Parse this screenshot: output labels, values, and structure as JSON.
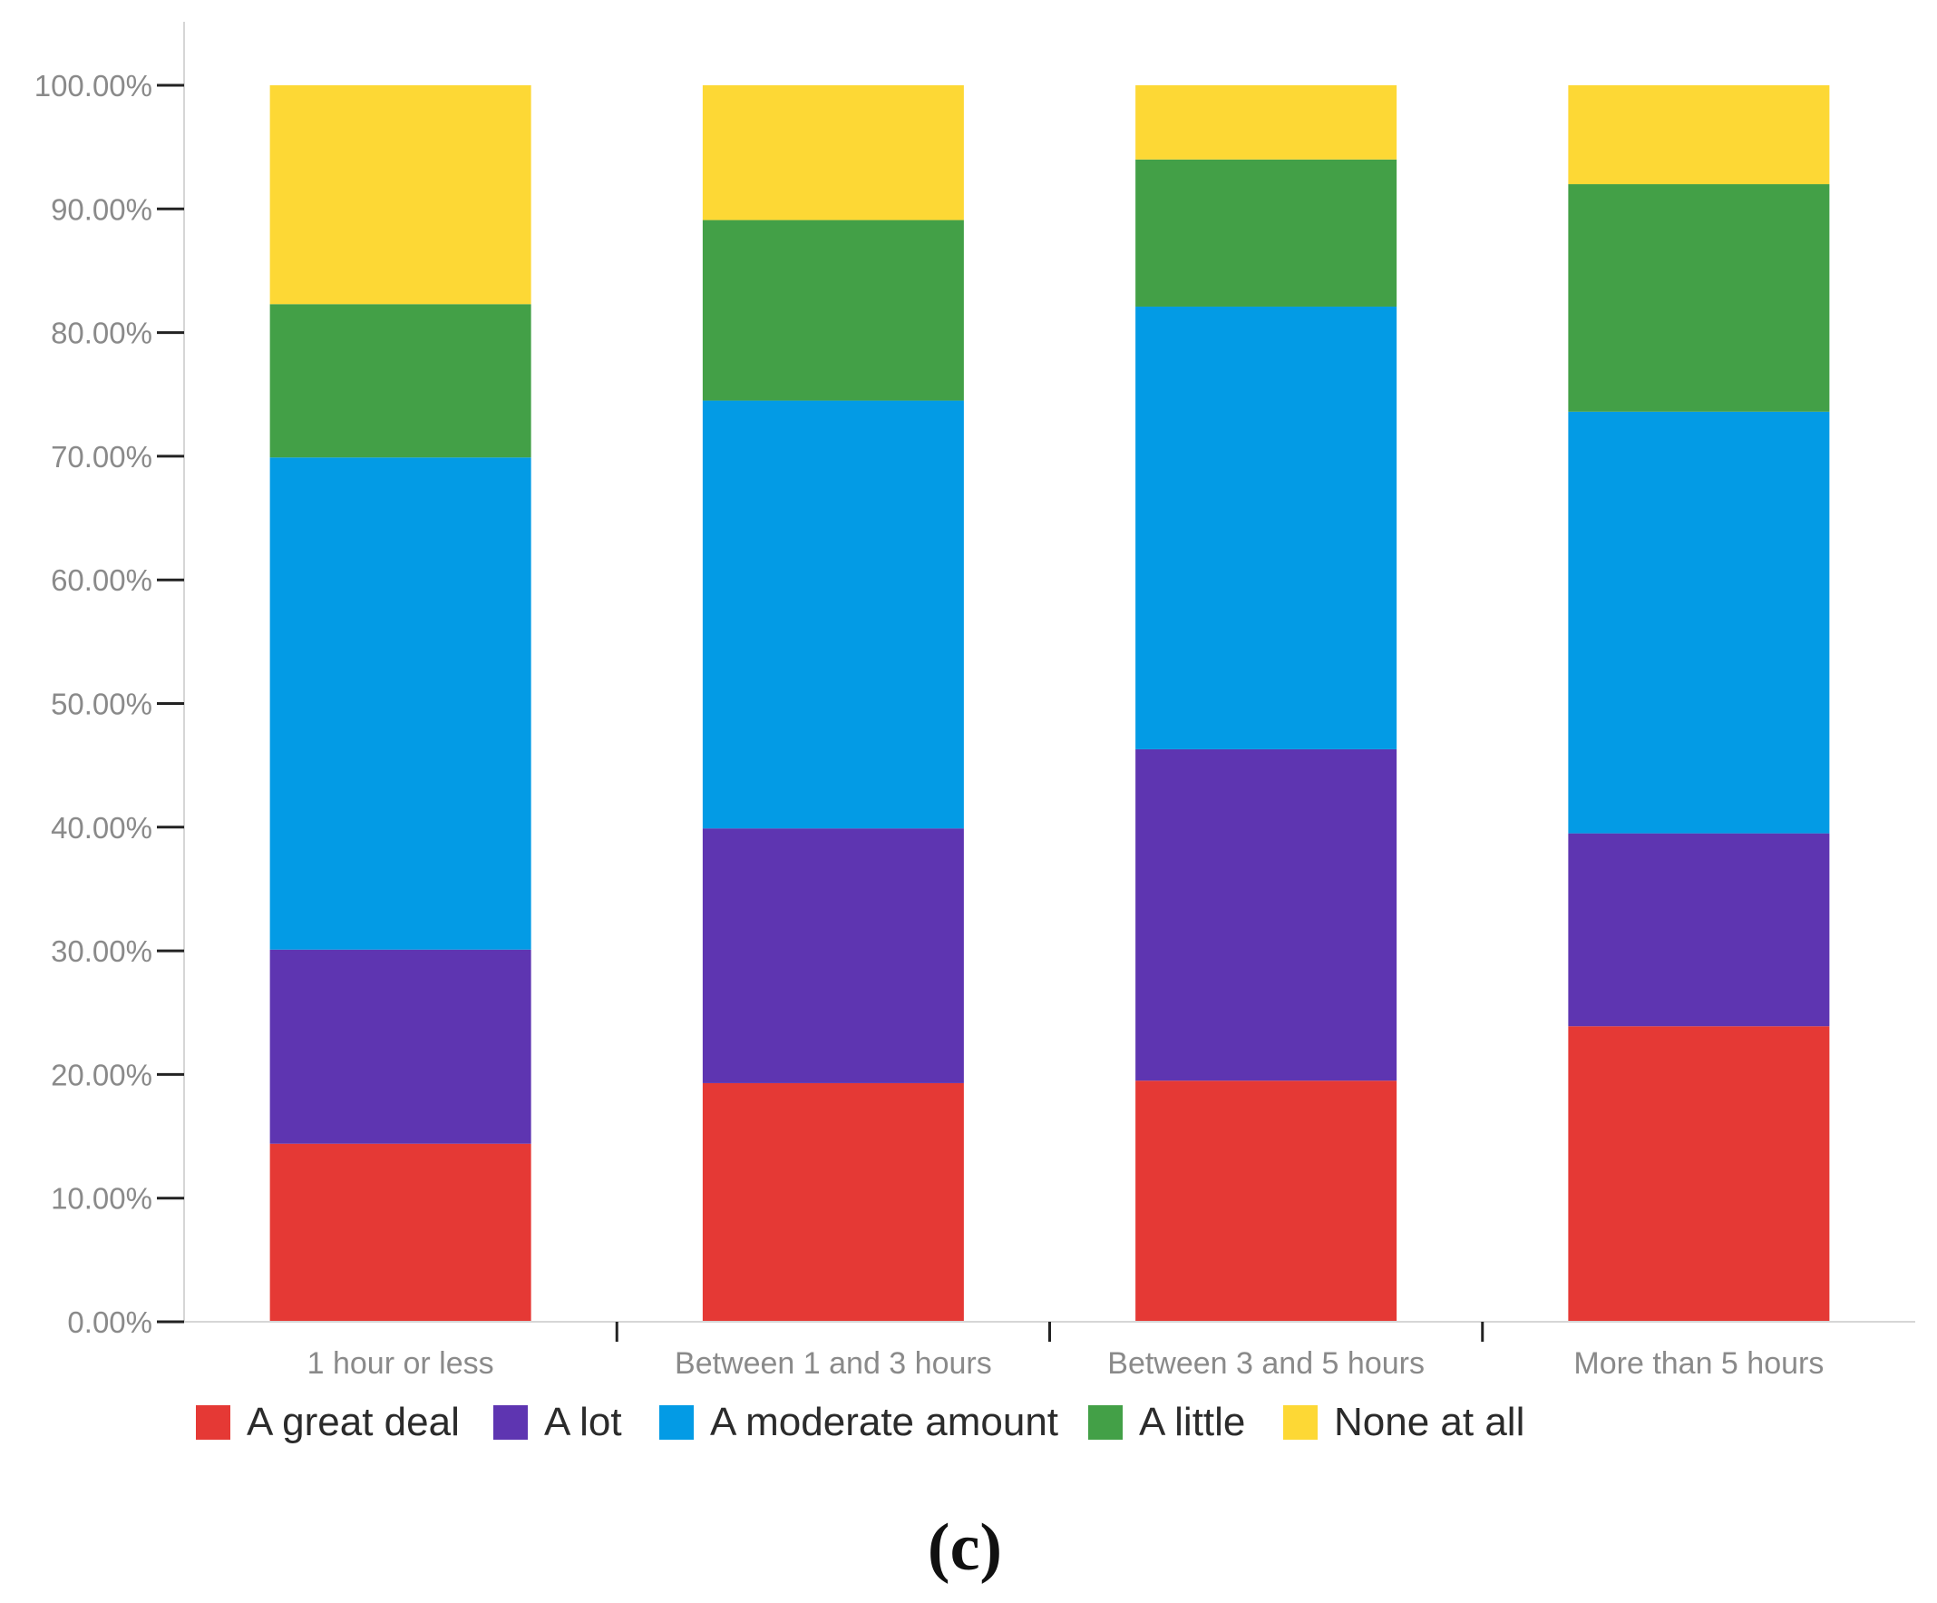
{
  "chart_data": {
    "type": "bar",
    "stacked": true,
    "title": "",
    "xlabel": "",
    "ylabel": "",
    "ylim": [
      0,
      100
    ],
    "y_ticks": [
      0,
      10,
      20,
      30,
      40,
      50,
      60,
      70,
      80,
      90,
      100
    ],
    "y_tick_labels": [
      "0.00%",
      "10.00%",
      "20.00%",
      "30.00%",
      "40.00%",
      "50.00%",
      "60.00%",
      "70.00%",
      "80.00%",
      "90.00%",
      "100.00%"
    ],
    "grid": false,
    "legend_position": "bottom-left",
    "categories": [
      "1 hour or less",
      "Between 1 and 3 hours",
      "Between 3 and 5 hours",
      "More than 5 hours"
    ],
    "series": [
      {
        "name": "A great deal",
        "color": "#e53935",
        "values": [
          14.4,
          19.3,
          19.5,
          23.9
        ]
      },
      {
        "name": "A lot",
        "color": "#5e35b1",
        "values": [
          15.7,
          20.6,
          26.8,
          15.6
        ]
      },
      {
        "name": "A moderate amount",
        "color": "#039be5",
        "values": [
          39.8,
          34.6,
          35.8,
          34.1
        ]
      },
      {
        "name": "A little",
        "color": "#43a047",
        "values": [
          12.4,
          14.6,
          11.9,
          18.4
        ]
      },
      {
        "name": "None at all",
        "color": "#fdd835",
        "values": [
          17.7,
          10.9,
          6.0,
          8.0
        ]
      }
    ]
  },
  "panel_label": "(c)"
}
